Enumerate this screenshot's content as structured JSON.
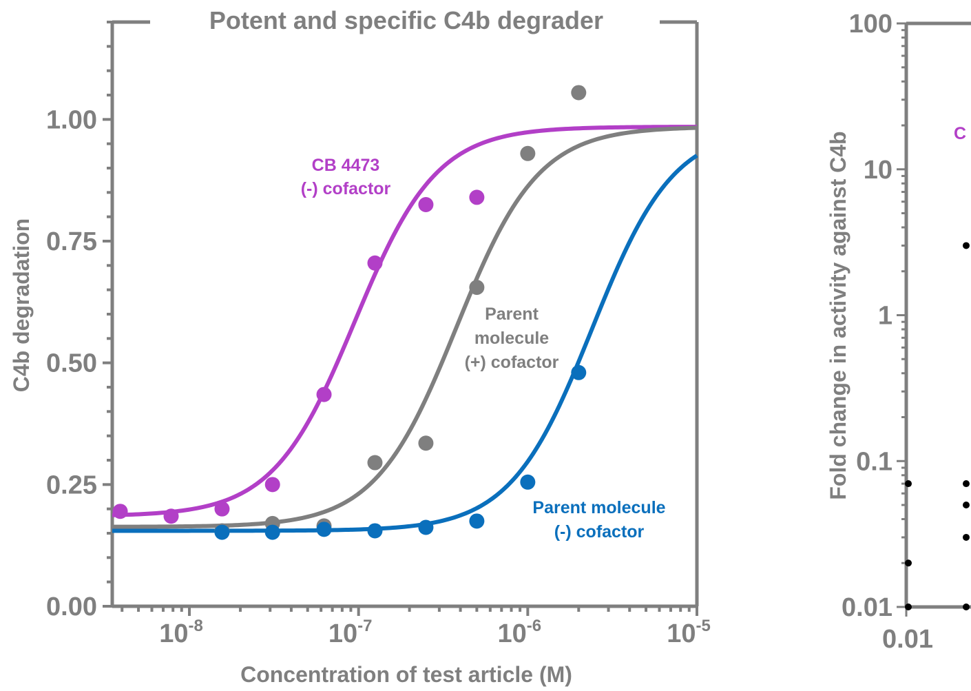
{
  "colors": {
    "axis": "#7f7f7f",
    "cb4473": "#b23fc7",
    "parent_plus": "#7f7f7f",
    "parent_minus": "#0a6fbc",
    "right_points": "#000000",
    "right_label": "#b23fc7"
  },
  "chart_data": [
    {
      "type": "scatter",
      "title": "Potent and specific C4b degrader",
      "xlabel": "Concentration of test article (M)",
      "ylabel": "C4b degradation",
      "xscale": "log",
      "xlim": [
        3.5e-09,
        1e-05
      ],
      "ylim": [
        0,
        1.2
      ],
      "x_ticks": [
        {
          "value": 1e-08,
          "base": "10",
          "exp": "-8"
        },
        {
          "value": 1e-07,
          "base": "10",
          "exp": "-7"
        },
        {
          "value": 1e-06,
          "base": "10",
          "exp": "-6"
        },
        {
          "value": 1e-05,
          "base": "10",
          "exp": "-5"
        }
      ],
      "y_ticks": [
        {
          "value": 0,
          "label": "0.00"
        },
        {
          "value": 0.25,
          "label": "0.25"
        },
        {
          "value": 0.5,
          "label": "0.50"
        },
        {
          "value": 0.75,
          "label": "0.75"
        },
        {
          "value": 1.0,
          "label": "1.00"
        }
      ],
      "grid": false,
      "series": [
        {
          "key": "cb4473",
          "label_lines": [
            "CB 4473",
            "(-) cofactor"
          ],
          "points": [
            [
              3.9e-09,
              0.195
            ],
            [
              7.8e-09,
              0.185
            ],
            [
              1.56e-08,
              0.2
            ],
            [
              3.1e-08,
              0.25
            ],
            [
              6.25e-08,
              0.435
            ],
            [
              1.25e-07,
              0.705
            ],
            [
              2.5e-07,
              0.825
            ],
            [
              5e-07,
              0.84
            ]
          ],
          "fit": {
            "bottom": 0.185,
            "top": 0.985,
            "ec50": 9.5e-08,
            "hill": 1.8
          }
        },
        {
          "key": "parent_plus",
          "label_lines": [
            "Parent",
            "molecule",
            "(+) cofactor"
          ],
          "points": [
            [
              1.56e-08,
              0.155
            ],
            [
              3.1e-08,
              0.17
            ],
            [
              6.25e-08,
              0.165
            ],
            [
              1.25e-07,
              0.295
            ],
            [
              2.5e-07,
              0.335
            ],
            [
              5e-07,
              0.655
            ],
            [
              1e-06,
              0.93
            ],
            [
              2e-06,
              1.055
            ]
          ],
          "fit": {
            "bottom": 0.163,
            "top": 0.985,
            "ec50": 3.8e-07,
            "hill": 1.8
          }
        },
        {
          "key": "parent_minus",
          "label_lines": [
            "Parent molecule",
            "(-) cofactor"
          ],
          "points": [
            [
              1.56e-08,
              0.152
            ],
            [
              3.1e-08,
              0.152
            ],
            [
              6.25e-08,
              0.158
            ],
            [
              1.25e-07,
              0.155
            ],
            [
              2.5e-07,
              0.162
            ],
            [
              5e-07,
              0.175
            ],
            [
              1e-06,
              0.255
            ],
            [
              2e-06,
              0.48
            ]
          ],
          "fit": {
            "bottom": 0.155,
            "top": 0.985,
            "ec50": 2.4e-06,
            "hill": 1.8
          }
        }
      ]
    },
    {
      "type": "scatter",
      "title": "",
      "xlabel": "",
      "ylabel": "Fold change in activity against C4b",
      "yscale": "log",
      "ylim": [
        0.01,
        100
      ],
      "y_ticks": [
        {
          "value": 100,
          "label": "100"
        },
        {
          "value": 10,
          "label": "10"
        },
        {
          "value": 1,
          "label": "1"
        },
        {
          "value": 0.1,
          "label": "0.1"
        },
        {
          "value": 0.01,
          "label": "0.01"
        }
      ],
      "x_ticks": [
        {
          "label": "0.01"
        }
      ],
      "series_label_fragment": "C",
      "points": [
        {
          "col": 0,
          "y": 0.07
        },
        {
          "col": 0,
          "y": 0.02
        },
        {
          "col": 0,
          "y": 0.01
        },
        {
          "col": 1,
          "y": 3.0
        },
        {
          "col": 1,
          "y": 0.07
        },
        {
          "col": 1,
          "y": 0.05
        },
        {
          "col": 1,
          "y": 0.03
        },
        {
          "col": 1,
          "y": 0.01
        }
      ]
    }
  ]
}
